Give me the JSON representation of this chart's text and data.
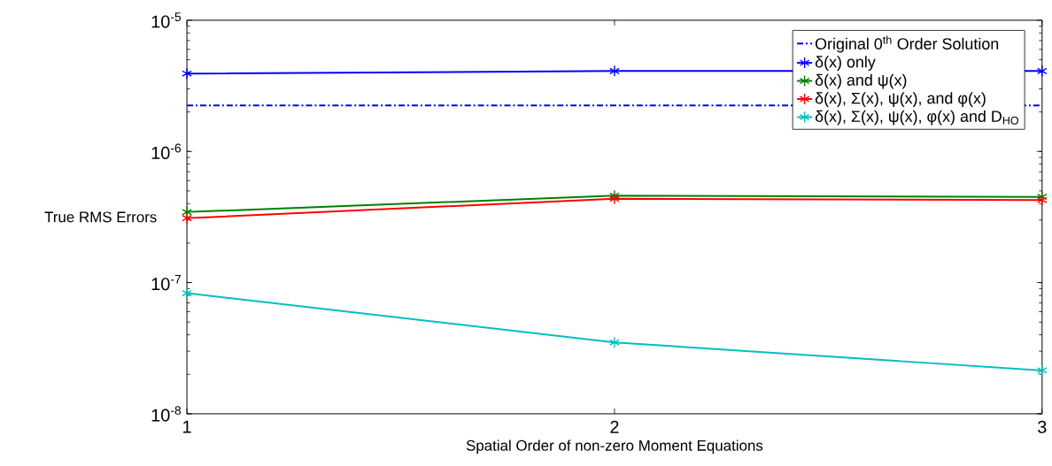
{
  "chart_data": {
    "type": "line",
    "xlabel": "Spatial Order of non-zero Moment Equations",
    "ylabel": "True RMS Errors",
    "x": [
      1,
      2,
      3
    ],
    "xlim": [
      1,
      3
    ],
    "xticks": [
      1,
      2,
      3
    ],
    "log": "y",
    "ylim": [
      1e-08,
      1e-05
    ],
    "yticks": [
      {
        "value": 1e-08,
        "label": "10$^{-8}$"
      },
      {
        "value": 1e-07,
        "label": "10$^{-7}$"
      },
      {
        "value": 1e-06,
        "label": "10$^{-6}$"
      },
      {
        "value": 1e-05,
        "label": "10$^{-5}$"
      }
    ],
    "grid": false,
    "legend": "top right",
    "marker": "cross",
    "line_style": "solid",
    "series": [
      {
        "name": "Original 0$^{th}$ Order Solution",
        "color": "#0000ff",
        "values": [
          2.24e-06,
          2.24e-06,
          2.24e-06
        ],
        "marker": "none",
        "line_style": "dashed"
      },
      {
        "name": "δ(x) only",
        "color": "#0000ff",
        "values": [
          3.92e-06,
          4.1e-06,
          4.1e-06
        ]
      },
      {
        "name": "δ(x) and ψ(x)",
        "color": "#008000",
        "values": [
          3.45e-07,
          4.6e-07,
          4.5e-07
        ]
      },
      {
        "name": "δ(x), Σ(x), ψ(x), and φ(x)",
        "color": "#ff0000",
        "values": [
          3.1e-07,
          4.36e-07,
          4.26e-07
        ]
      },
      {
        "name": "δ(x), Σ(x), ψ(x), φ(x) and D$_{HO}$",
        "color": "#00bfbf",
        "values": [
          8.3e-08,
          3.5e-08,
          2.14e-08
        ]
      }
    ]
  }
}
